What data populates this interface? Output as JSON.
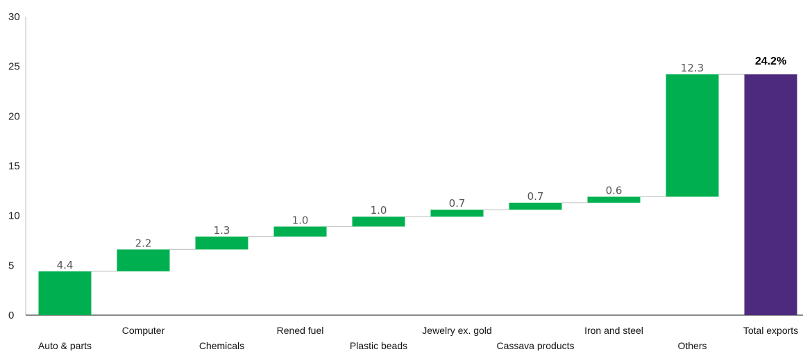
{
  "chart_data": {
    "type": "bar",
    "subtype": "waterfall",
    "categories": [
      "Auto & parts",
      "Computer",
      "Chemicals",
      "Rened fuel",
      "Plastic beads",
      "Jewelry ex. gold",
      "Cassava products",
      "Iron and steel",
      "Others",
      "Total exports"
    ],
    "values": [
      4.4,
      2.2,
      1.3,
      1.0,
      1.0,
      0.7,
      0.7,
      0.6,
      12.3,
      24.2
    ],
    "value_labels": [
      "4.4",
      "2.2",
      "1.3",
      "1.0",
      "1.0",
      "0.7",
      "0.7",
      "0.6",
      "12.3",
      "24.2%"
    ],
    "is_total": [
      false,
      false,
      false,
      false,
      false,
      false,
      false,
      false,
      false,
      true
    ],
    "ylim": [
      0,
      30
    ],
    "yticks": [
      0,
      5,
      10,
      15,
      20,
      25,
      30
    ],
    "grid": false,
    "colors": {
      "increment": "#00b050",
      "total": "#4e2a7e",
      "connector": "#c8c8c8",
      "axis": "#bbbbbb"
    },
    "xlabel": "",
    "ylabel": ""
  }
}
